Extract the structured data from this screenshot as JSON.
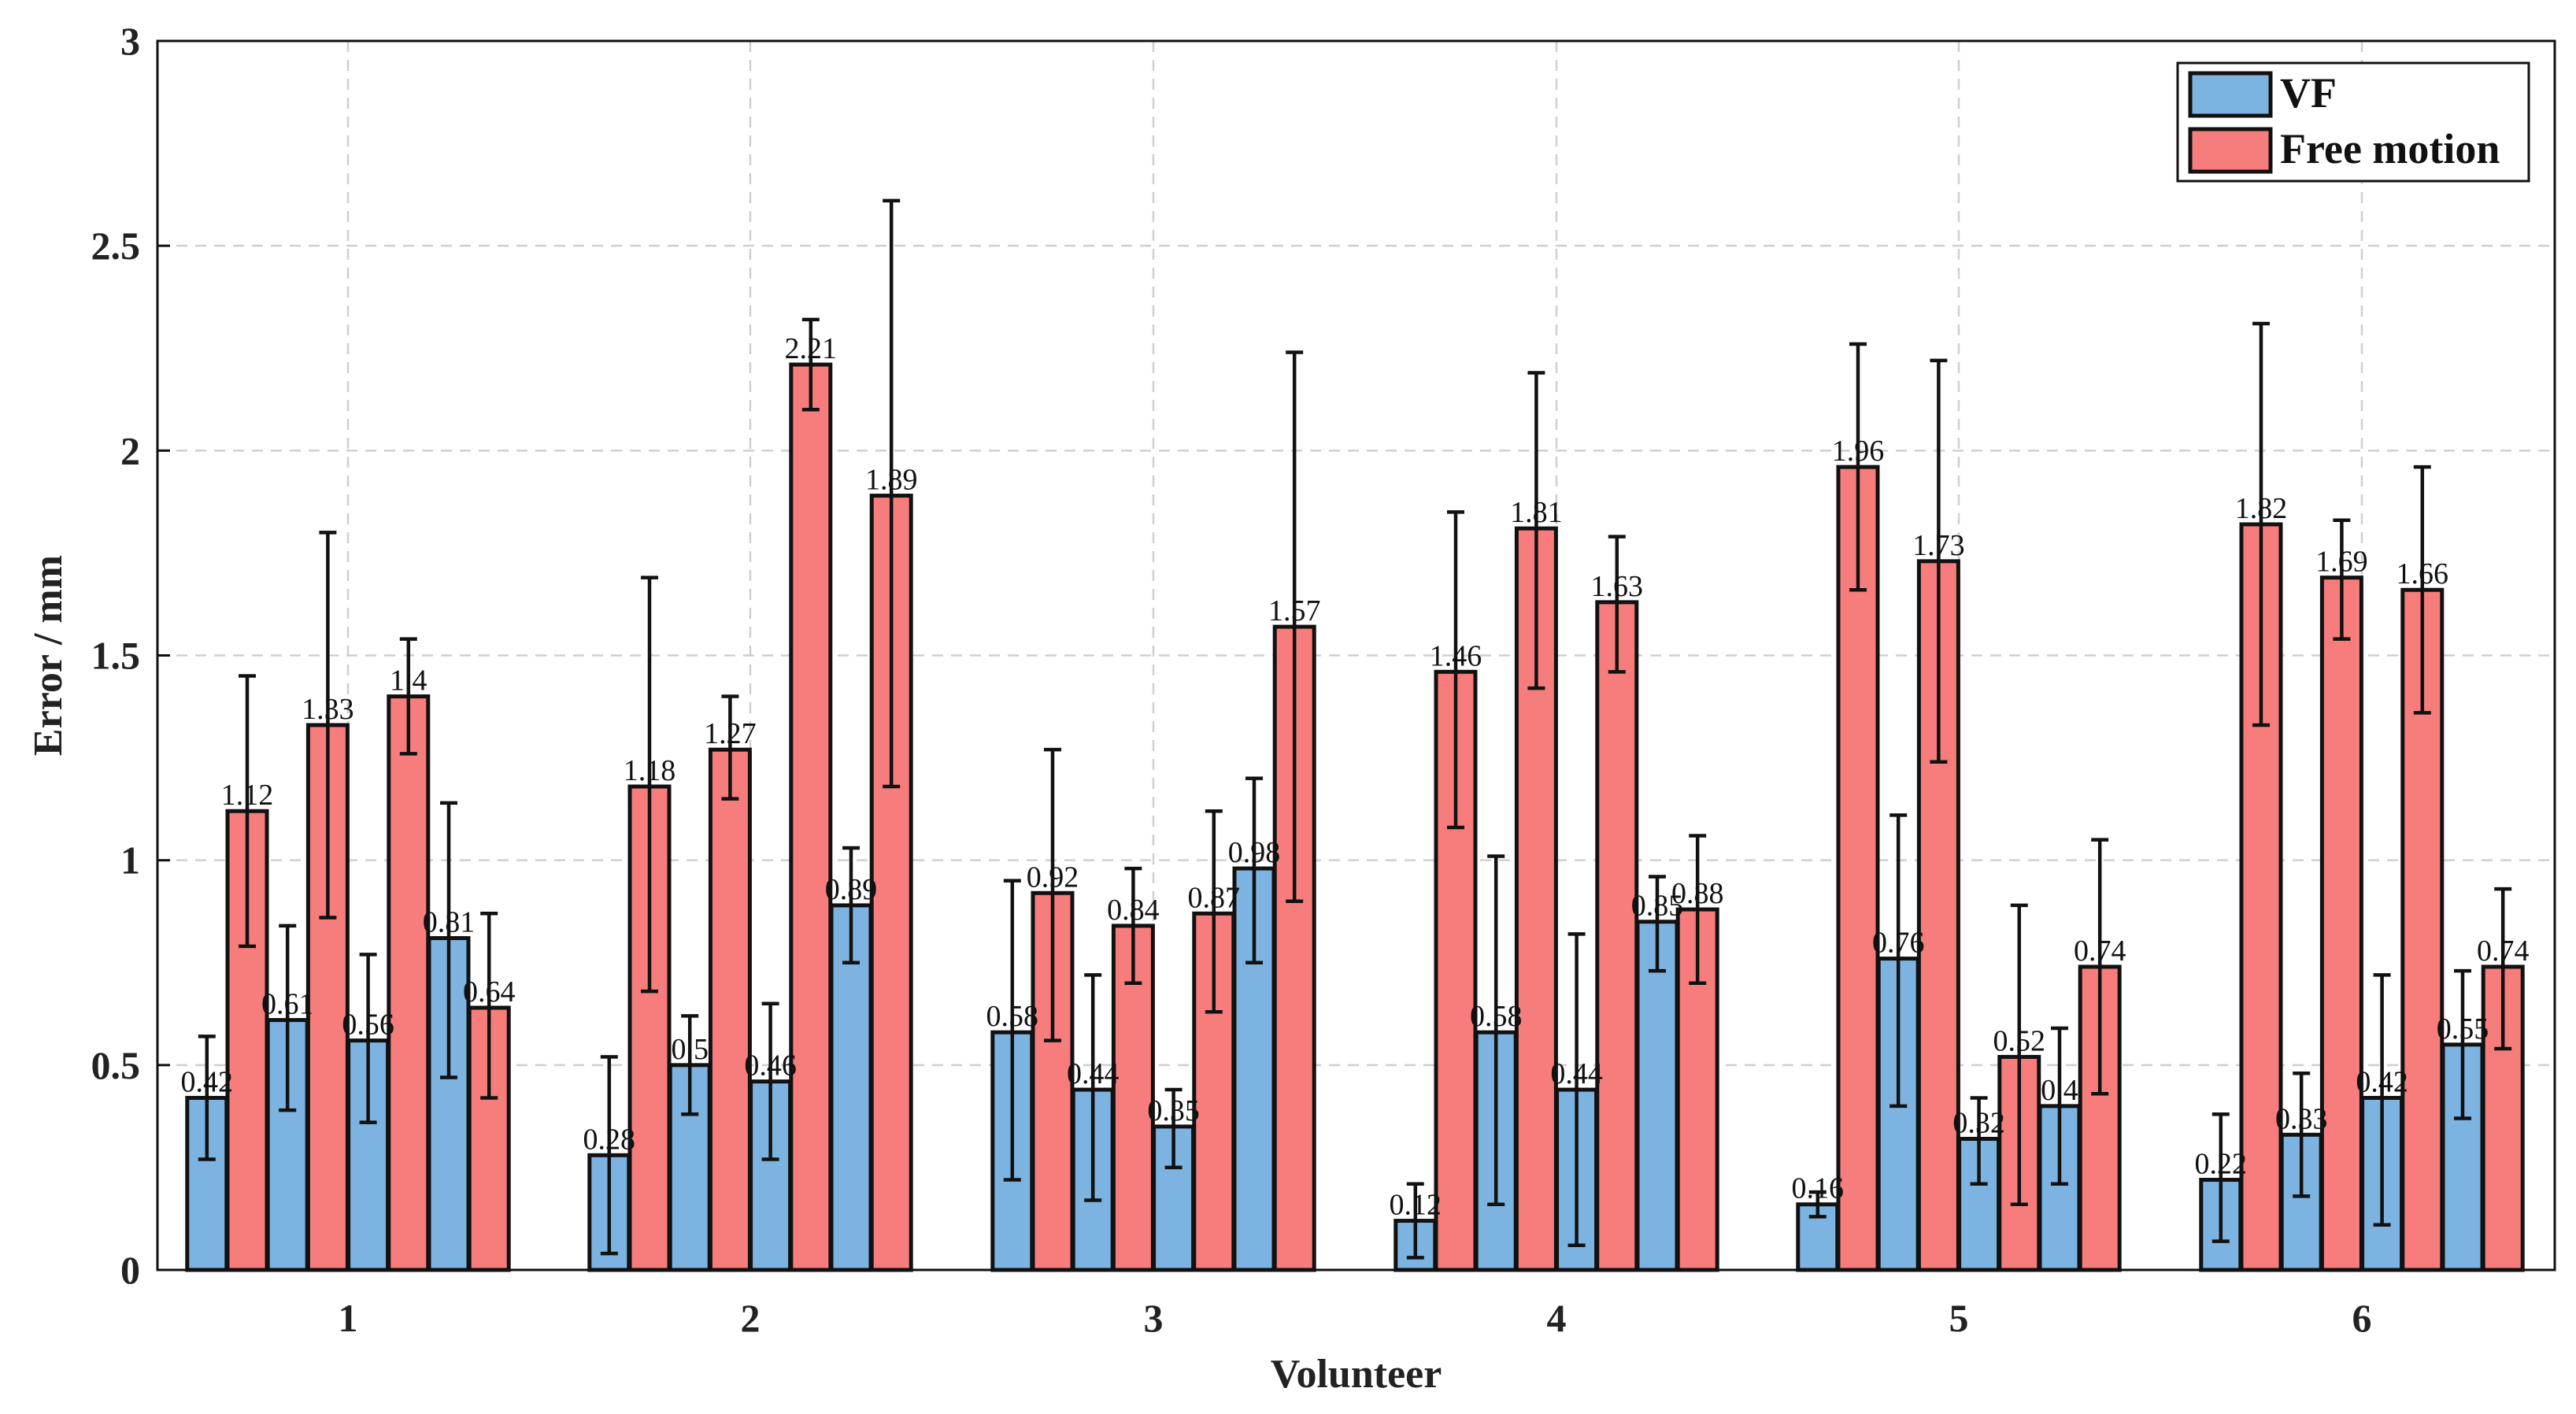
{
  "chart_data": {
    "type": "bar",
    "title": "",
    "xlabel": "Volunteer",
    "ylabel": "Error / mm",
    "ylim": [
      0,
      3
    ],
    "yticks": [
      "0",
      "0.5",
      "1",
      "1.5",
      "2",
      "2.5",
      "3"
    ],
    "ytick_values": [
      0,
      0.5,
      1,
      1.5,
      2,
      2.5,
      3
    ],
    "grid": true,
    "legend_position": "top-right",
    "series": [
      {
        "name": "VF",
        "color": "#7db3e0"
      },
      {
        "name": "Free motion",
        "color": "#f77d7d"
      }
    ],
    "groups": [
      {
        "category": "1",
        "bars": [
          {
            "series": "VF",
            "value": 0.42,
            "label": "0.42",
            "err_low": 0.27,
            "err_high": 0.57
          },
          {
            "series": "Free motion",
            "value": 1.12,
            "label": "1.12",
            "err_low": 0.79,
            "err_high": 1.45
          },
          {
            "series": "VF",
            "value": 0.61,
            "label": "0.61",
            "err_low": 0.39,
            "err_high": 0.84
          },
          {
            "series": "Free motion",
            "value": 1.33,
            "label": "1.33",
            "err_low": 0.86,
            "err_high": 1.8
          },
          {
            "series": "VF",
            "value": 0.56,
            "label": "0.56",
            "err_low": 0.36,
            "err_high": 0.77
          },
          {
            "series": "Free motion",
            "value": 1.4,
            "label": "1.4",
            "err_low": 1.26,
            "err_high": 1.54
          },
          {
            "series": "VF",
            "value": 0.81,
            "label": "0.81",
            "err_low": 0.47,
            "err_high": 1.14
          },
          {
            "series": "Free motion",
            "value": 0.64,
            "label": "0.64",
            "err_low": 0.42,
            "err_high": 0.87
          }
        ]
      },
      {
        "category": "2",
        "bars": [
          {
            "series": "VF",
            "value": 0.28,
            "label": "0.28",
            "err_low": 0.04,
            "err_high": 0.52
          },
          {
            "series": "Free motion",
            "value": 1.18,
            "label": "1.18",
            "err_low": 0.68,
            "err_high": 1.69
          },
          {
            "series": "VF",
            "value": 0.5,
            "label": "0.5",
            "err_low": 0.38,
            "err_high": 0.62
          },
          {
            "series": "Free motion",
            "value": 1.27,
            "label": "1.27",
            "err_low": 1.15,
            "err_high": 1.4
          },
          {
            "series": "VF",
            "value": 0.46,
            "label": "0.46",
            "err_low": 0.27,
            "err_high": 0.65
          },
          {
            "series": "Free motion",
            "value": 2.21,
            "label": "2.21",
            "err_low": 2.1,
            "err_high": 2.32
          },
          {
            "series": "VF",
            "value": 0.89,
            "label": "0.89",
            "err_low": 0.75,
            "err_high": 1.03
          },
          {
            "series": "Free motion",
            "value": 1.89,
            "label": "1.89",
            "err_low": 1.18,
            "err_high": 2.61
          }
        ]
      },
      {
        "category": "3",
        "bars": [
          {
            "series": "VF",
            "value": 0.58,
            "label": "0.58",
            "err_low": 0.22,
            "err_high": 0.95
          },
          {
            "series": "Free motion",
            "value": 0.92,
            "label": "0.92",
            "err_low": 0.56,
            "err_high": 1.27
          },
          {
            "series": "VF",
            "value": 0.44,
            "label": "0.44",
            "err_low": 0.17,
            "err_high": 0.72
          },
          {
            "series": "Free motion",
            "value": 0.84,
            "label": "0.84",
            "err_low": 0.7,
            "err_high": 0.98
          },
          {
            "series": "VF",
            "value": 0.35,
            "label": "0.35",
            "err_low": 0.25,
            "err_high": 0.44
          },
          {
            "series": "Free motion",
            "value": 0.87,
            "label": "0.87",
            "err_low": 0.63,
            "err_high": 1.12
          },
          {
            "series": "VF",
            "value": 0.98,
            "label": "0.98",
            "err_low": 0.75,
            "err_high": 1.2
          },
          {
            "series": "Free motion",
            "value": 1.57,
            "label": "1.57",
            "err_low": 0.9,
            "err_high": 2.24
          }
        ]
      },
      {
        "category": "4",
        "bars": [
          {
            "series": "VF",
            "value": 0.12,
            "label": "0.12",
            "err_low": 0.03,
            "err_high": 0.21
          },
          {
            "series": "Free motion",
            "value": 1.46,
            "label": "1.46",
            "err_low": 1.08,
            "err_high": 1.85
          },
          {
            "series": "VF",
            "value": 0.58,
            "label": "0.58",
            "err_low": 0.16,
            "err_high": 1.01
          },
          {
            "series": "Free motion",
            "value": 1.81,
            "label": "1.81",
            "err_low": 1.42,
            "err_high": 2.19
          },
          {
            "series": "VF",
            "value": 0.44,
            "label": "0.44",
            "err_low": 0.06,
            "err_high": 0.82
          },
          {
            "series": "Free motion",
            "value": 1.63,
            "label": "1.63",
            "err_low": 1.46,
            "err_high": 1.79
          },
          {
            "series": "VF",
            "value": 0.85,
            "label": "0.85",
            "err_low": 0.73,
            "err_high": 0.96
          },
          {
            "series": "Free motion",
            "value": 0.88,
            "label": "0.88",
            "err_low": 0.7,
            "err_high": 1.06
          }
        ]
      },
      {
        "category": "5",
        "bars": [
          {
            "series": "VF",
            "value": 0.16,
            "label": "0.16",
            "err_low": 0.13,
            "err_high": 0.19
          },
          {
            "series": "Free motion",
            "value": 1.96,
            "label": "1.96",
            "err_low": 1.66,
            "err_high": 2.26
          },
          {
            "series": "VF",
            "value": 0.76,
            "label": "0.76",
            "err_low": 0.4,
            "err_high": 1.11
          },
          {
            "series": "Free motion",
            "value": 1.73,
            "label": "1.73",
            "err_low": 1.24,
            "err_high": 2.22
          },
          {
            "series": "VF",
            "value": 0.32,
            "label": "0.32",
            "err_low": 0.21,
            "err_high": 0.42
          },
          {
            "series": "Free motion",
            "value": 0.52,
            "label": "0.52",
            "err_low": 0.16,
            "err_high": 0.89
          },
          {
            "series": "VF",
            "value": 0.4,
            "label": "0.4",
            "err_low": 0.21,
            "err_high": 0.59
          },
          {
            "series": "Free motion",
            "value": 0.74,
            "label": "0.74",
            "err_low": 0.43,
            "err_high": 1.05
          }
        ]
      },
      {
        "category": "6",
        "bars": [
          {
            "series": "VF",
            "value": 0.22,
            "label": "0.22",
            "err_low": 0.07,
            "err_high": 0.38
          },
          {
            "series": "Free motion",
            "value": 1.82,
            "label": "1.82",
            "err_low": 1.33,
            "err_high": 2.31
          },
          {
            "series": "VF",
            "value": 0.33,
            "label": "0.33",
            "err_low": 0.18,
            "err_high": 0.48
          },
          {
            "series": "Free motion",
            "value": 1.69,
            "label": "1.69",
            "err_low": 1.54,
            "err_high": 1.83
          },
          {
            "series": "VF",
            "value": 0.42,
            "label": "0.42",
            "err_low": 0.11,
            "err_high": 0.72
          },
          {
            "series": "Free motion",
            "value": 1.66,
            "label": "1.66",
            "err_low": 1.36,
            "err_high": 1.96
          },
          {
            "series": "VF",
            "value": 0.55,
            "label": "0.55",
            "err_low": 0.37,
            "err_high": 0.73
          },
          {
            "series": "Free motion",
            "value": 0.74,
            "label": "0.74",
            "err_low": 0.54,
            "err_high": 0.93
          }
        ]
      }
    ]
  }
}
